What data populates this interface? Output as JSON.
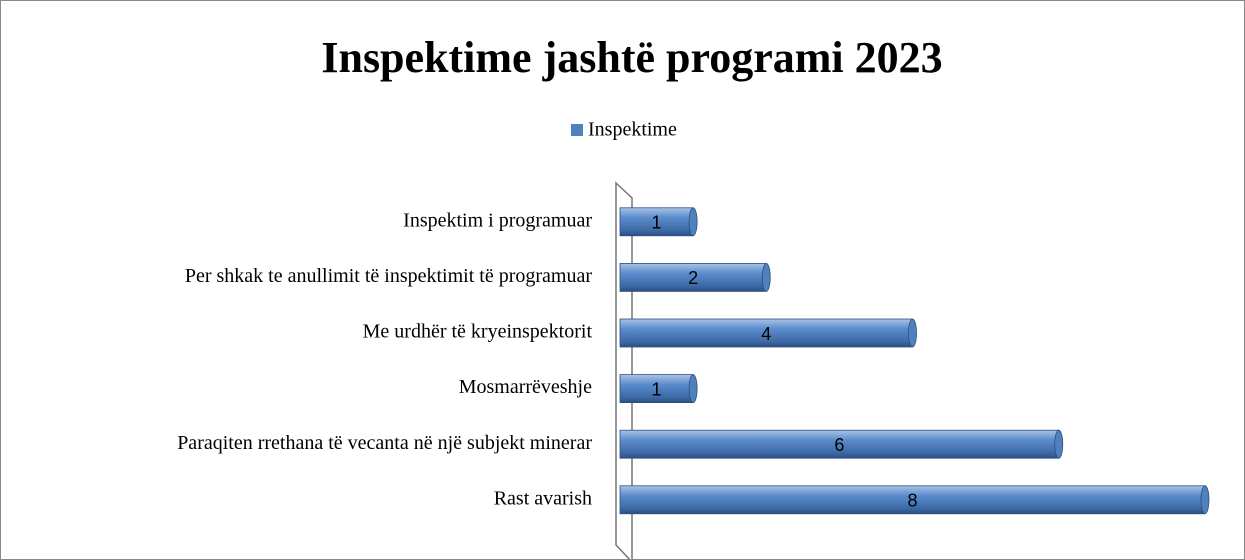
{
  "chart_data": {
    "type": "bar",
    "orientation": "horizontal",
    "title": "Inspektime jashtë programi 2023",
    "categories": [
      "Inspektim i programuar",
      "Per shkak te anullimit të inspektimit të programuar",
      "Me urdhër të kryeinspektorit",
      "Mosmarrëveshje",
      "Paraqiten rrethana të vecanta në një subjekt minerar",
      "Rast avarish"
    ],
    "series": [
      {
        "name": "Inspektime",
        "color": "#4f81bd",
        "values": [
          1,
          2,
          4,
          1,
          6,
          8
        ]
      }
    ],
    "xlim": [
      0,
      8
    ],
    "legend": "top"
  }
}
